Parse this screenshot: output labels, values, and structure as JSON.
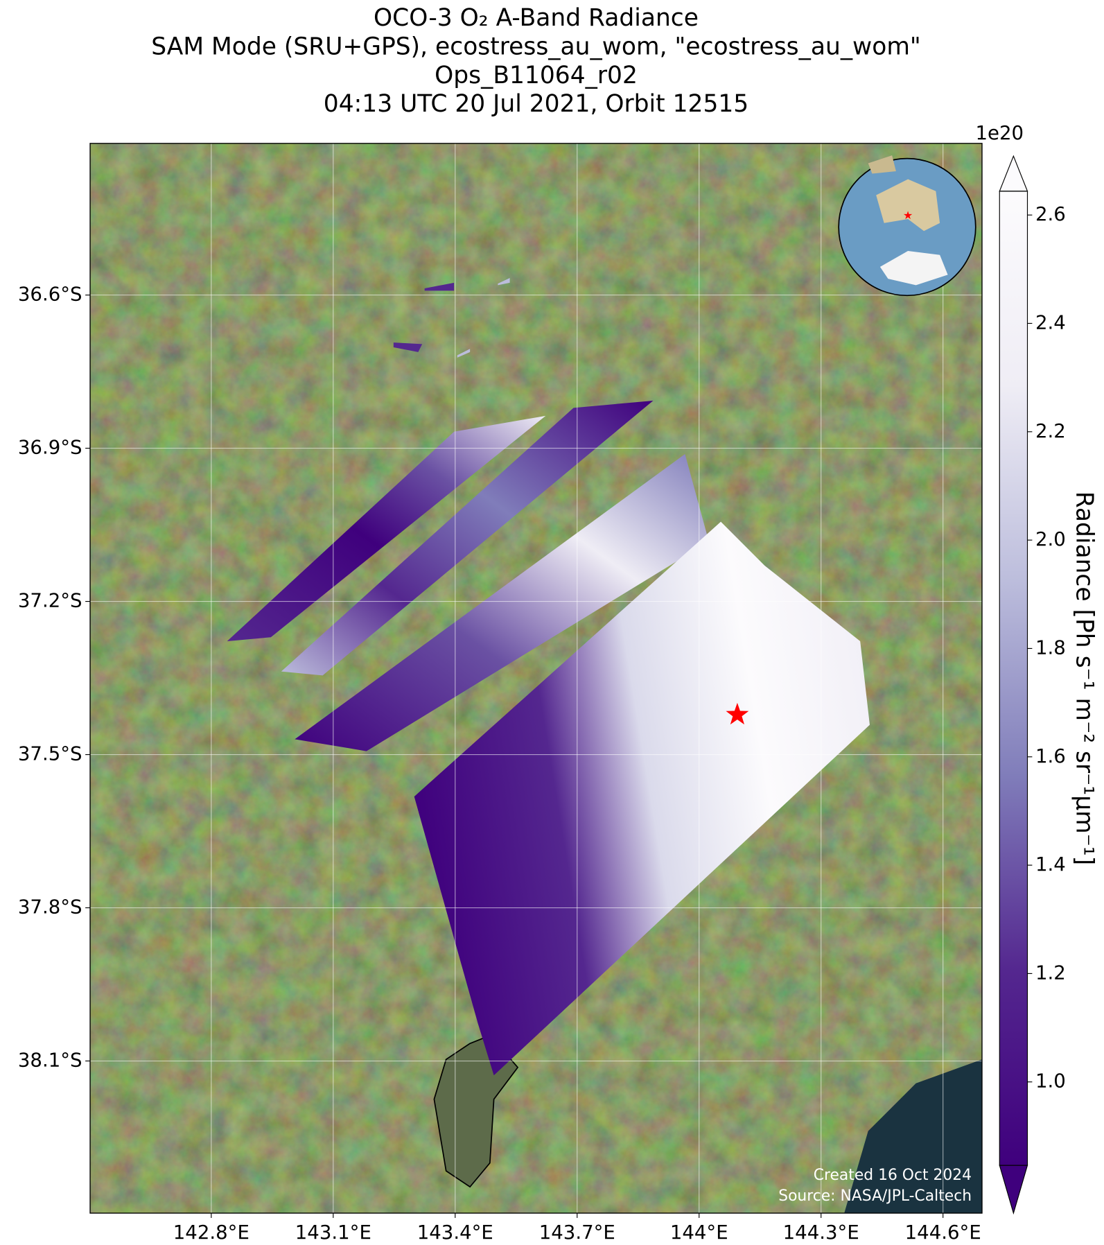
{
  "chart_data": {
    "type": "map",
    "title_lines": [
      "OCO-3 O₂ A-Band Radiance",
      "SAM Mode (SRU+GPS), ecostress_au_wom, \"ecostress_au_wom\"",
      "Ops_B11064_r02",
      "04:13 UTC 20 Jul 2021, Orbit 12515"
    ],
    "xlim": [
      142.502,
      144.696
    ],
    "ylim": [
      -38.398,
      -36.303
    ],
    "xticks": [
      {
        "value": 142.8,
        "label": "142.8°E"
      },
      {
        "value": 143.1,
        "label": "143.1°E"
      },
      {
        "value": 143.4,
        "label": "143.4°E"
      },
      {
        "value": 143.7,
        "label": "143.7°E"
      },
      {
        "value": 144.0,
        "label": "144°E"
      },
      {
        "value": 144.3,
        "label": "144.3°E"
      },
      {
        "value": 144.6,
        "label": "144.6°E"
      }
    ],
    "yticks": [
      {
        "value": -36.6,
        "label": "36.6°S"
      },
      {
        "value": -36.9,
        "label": "36.9°S"
      },
      {
        "value": -37.2,
        "label": "37.2°S"
      },
      {
        "value": -37.5,
        "label": "37.5°S"
      },
      {
        "value": -37.8,
        "label": "37.8°S"
      },
      {
        "value": -38.1,
        "label": "38.1°S"
      }
    ],
    "grid": true,
    "target": {
      "lon": 144.094,
      "lat": -37.422,
      "color": "#ff0000"
    },
    "colorbar": {
      "label": "Radiance [Ph s⁻¹ m⁻² sr⁻¹μm⁻¹]",
      "offset_text": "1e20",
      "colormap": [
        "#3f007d",
        "#54278f",
        "#807dba",
        "#bcbddc",
        "#efedf5",
        "#fcfbfd"
      ],
      "clim": [
        0.846,
        2.644
      ],
      "ticks": [
        {
          "value": 1.0,
          "label": "1.0"
        },
        {
          "value": 1.2,
          "label": "1.2"
        },
        {
          "value": 1.4,
          "label": "1.4"
        },
        {
          "value": 1.6,
          "label": "1.6"
        },
        {
          "value": 1.8,
          "label": "1.8"
        },
        {
          "value": 2.0,
          "label": "2.0"
        },
        {
          "value": 2.2,
          "label": "2.2"
        },
        {
          "value": 2.4,
          "label": "2.4"
        },
        {
          "value": 2.6,
          "label": "2.6"
        }
      ]
    },
    "credits": [
      "Created 16 Oct 2024",
      "Source: NASA/JPL-Caltech"
    ]
  }
}
